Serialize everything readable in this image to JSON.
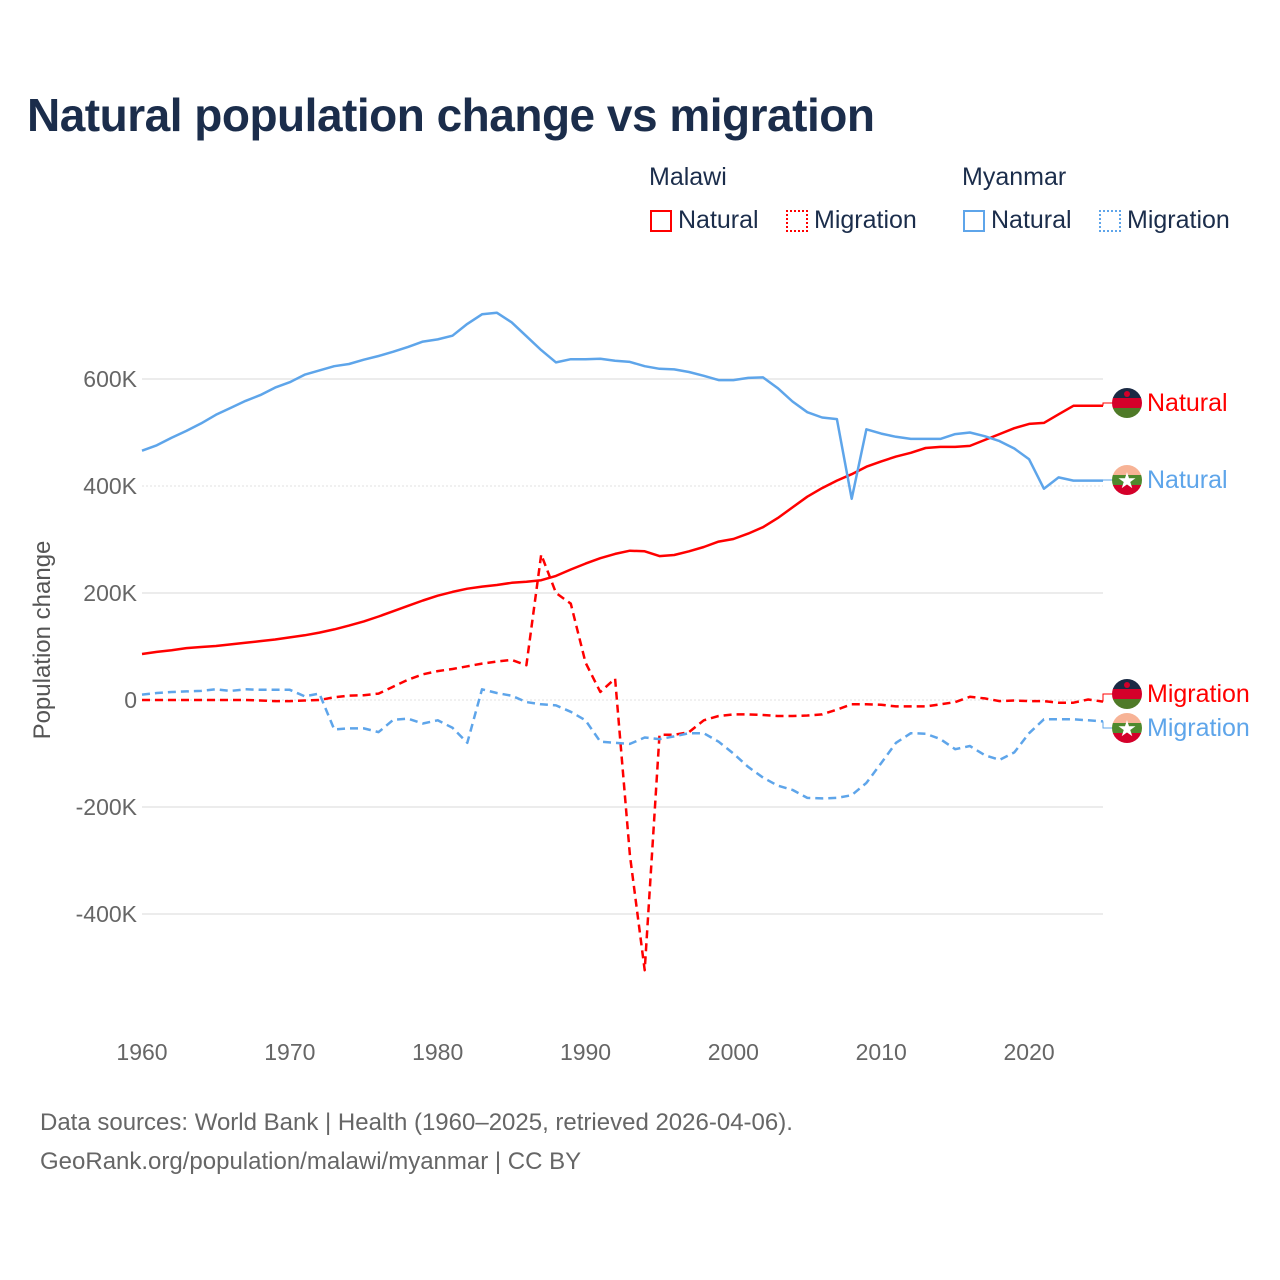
{
  "chart_data": {
    "type": "line",
    "title": "Natural population change vs migration",
    "xlabel": "",
    "ylabel": "Population change",
    "xlim": [
      1960,
      2025
    ],
    "ylim": [
      -600000,
      750000
    ],
    "x_ticks": [
      1960,
      1970,
      1980,
      1990,
      2000,
      2010,
      2020
    ],
    "x_tick_labels": [
      "1960",
      "1970",
      "1980",
      "1990",
      "2000",
      "2010",
      "2020"
    ],
    "y_ticks": [
      600000,
      400000,
      200000,
      0,
      -200000,
      -400000
    ],
    "y_tick_labels": [
      "600K",
      "400K",
      "200K",
      "0",
      "-200K",
      "-400K"
    ],
    "grid": true,
    "legend_placement": "top-right",
    "legend": {
      "groups": [
        {
          "label": "Malawi",
          "items": [
            "Natural",
            "Migration"
          ]
        },
        {
          "label": "Myanmar",
          "items": [
            "Natural",
            "Migration"
          ]
        }
      ]
    },
    "x": [
      1960,
      1961,
      1962,
      1963,
      1964,
      1965,
      1966,
      1967,
      1968,
      1969,
      1970,
      1971,
      1972,
      1973,
      1974,
      1975,
      1976,
      1977,
      1978,
      1979,
      1980,
      1981,
      1982,
      1983,
      1984,
      1985,
      1986,
      1987,
      1988,
      1989,
      1990,
      1991,
      1992,
      1993,
      1994,
      1995,
      1996,
      1997,
      1998,
      1999,
      2000,
      2001,
      2002,
      2003,
      2004,
      2005,
      2006,
      2007,
      2008,
      2009,
      2010,
      2011,
      2012,
      2013,
      2014,
      2015,
      2016,
      2017,
      2018,
      2019,
      2020,
      2021,
      2022,
      2023,
      2024,
      2025
    ],
    "series": [
      {
        "name": "Malawi Natural",
        "country": "Malawi",
        "kind": "Natural",
        "color": "#ff0000",
        "dash": "solid",
        "end_label": "Natural",
        "values_k": [
          86,
          90,
          93,
          97,
          99,
          101,
          104,
          107,
          110,
          113,
          117,
          121,
          126,
          132,
          139,
          147,
          156,
          166,
          176,
          186,
          195,
          202,
          208,
          212,
          215,
          219,
          221,
          224,
          232,
          244,
          255,
          265,
          273,
          279,
          278,
          269,
          271,
          278,
          286,
          296,
          301,
          311,
          323,
          340,
          360,
          380,
          396,
          410,
          422,
          436,
          446,
          455,
          462,
          471,
          473,
          473,
          475,
          486,
          497,
          508,
          516,
          518,
          534,
          550,
          550,
          550
        ]
      },
      {
        "name": "Malawi Migration",
        "country": "Malawi",
        "kind": "Migration",
        "color": "#ff0000",
        "dash": "dashed",
        "end_label": "Migration",
        "values_k": [
          0,
          0,
          0,
          0,
          0,
          0,
          0,
          0,
          -1,
          -2,
          -2,
          -1,
          0,
          5,
          8,
          9,
          12,
          25,
          38,
          48,
          54,
          58,
          63,
          68,
          72,
          75,
          65,
          272,
          200,
          180,
          70,
          15,
          40,
          -290,
          -505,
          -65,
          -65,
          -60,
          -38,
          -30,
          -27,
          -27,
          -28,
          -30,
          -30,
          -29,
          -27,
          -18,
          -8,
          -8,
          -9,
          -12,
          -12,
          -12,
          -8,
          -4,
          6,
          3,
          -2,
          -1,
          -2,
          -2,
          -5,
          -5,
          1,
          -3
        ]
      },
      {
        "name": "Myanmar Natural",
        "country": "Myanmar",
        "kind": "Natural",
        "color": "#5ea5ea",
        "dash": "solid",
        "end_label": "Natural",
        "values_k": [
          466,
          476,
          490,
          503,
          517,
          533,
          546,
          559,
          570,
          584,
          594,
          608,
          616,
          624,
          628,
          636,
          643,
          651,
          660,
          670,
          674,
          681,
          703,
          721,
          724,
          706,
          680,
          654,
          631,
          637,
          637,
          638,
          634,
          632,
          624,
          619,
          618,
          613,
          606,
          598,
          598,
          602,
          603,
          583,
          558,
          538,
          528,
          525,
          376,
          506,
          498,
          492,
          488,
          488,
          488,
          497,
          500,
          493,
          484,
          470,
          450,
          395,
          416,
          410,
          410,
          410
        ]
      },
      {
        "name": "Myanmar Migration",
        "country": "Myanmar",
        "kind": "Migration",
        "color": "#5ea5ea",
        "dash": "dashed",
        "end_label": "Migration",
        "values_k": [
          10,
          13,
          15,
          16,
          17,
          20,
          17,
          20,
          19,
          19,
          19,
          7,
          12,
          -55,
          -53,
          -53,
          -60,
          -37,
          -35,
          -44,
          -38,
          -52,
          -80,
          20,
          13,
          8,
          -4,
          -8,
          -10,
          -22,
          -38,
          -78,
          -80,
          -82,
          -70,
          -73,
          -68,
          -62,
          -62,
          -78,
          -100,
          -125,
          -145,
          -160,
          -168,
          -183,
          -184,
          -183,
          -178,
          -155,
          -118,
          -80,
          -62,
          -63,
          -73,
          -92,
          -86,
          -103,
          -112,
          -98,
          -62,
          -36,
          -36,
          -36,
          -38,
          -40
        ]
      }
    ]
  },
  "footer": {
    "line1": "Data sources: World Bank | Health (1960–2025, retrieved 2026-04-06).",
    "line2": "GeoRank.org/population/malawi/myanmar | CC BY"
  }
}
